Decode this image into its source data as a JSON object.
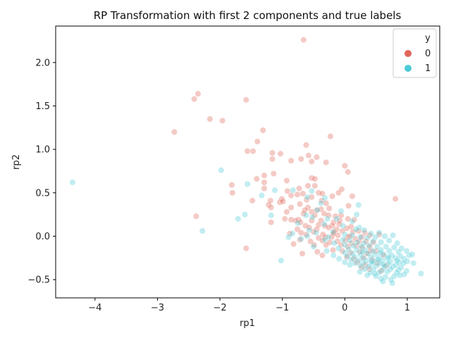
{
  "chart_data": {
    "type": "scatter",
    "title": "RP Transformation with first 2 components and true labels",
    "xlabel": "rp1",
    "ylabel": "rp2",
    "xlim": [
      -4.63,
      1.52
    ],
    "ylim": [
      -0.71,
      2.42
    ],
    "xticks": [
      -4,
      -3,
      -2,
      -1,
      0,
      1
    ],
    "yticks": [
      -0.5,
      0.0,
      0.5,
      1.0,
      1.5,
      2.0
    ],
    "xtick_labels": [
      "−4",
      "−3",
      "−2",
      "−1",
      "0",
      "1"
    ],
    "ytick_labels": [
      "−0.5",
      "0.0",
      "0.5",
      "1.0",
      "1.5",
      "2.0"
    ],
    "grid": false,
    "legend": {
      "title": "y",
      "placement": "top-right",
      "entries": [
        "0",
        "1"
      ]
    },
    "point_opacity": 0.35,
    "series": [
      {
        "name": "0",
        "color": "#e0675a",
        "points": [
          [
            -0.66,
            2.26
          ],
          [
            -2.35,
            1.64
          ],
          [
            -2.41,
            1.58
          ],
          [
            -1.58,
            1.57
          ],
          [
            -2.16,
            1.35
          ],
          [
            -1.96,
            1.33
          ],
          [
            -2.73,
            1.2
          ],
          [
            -1.31,
            1.22
          ],
          [
            -0.23,
            1.15
          ],
          [
            -1.4,
            1.09
          ],
          [
            -0.62,
            1.05
          ],
          [
            -1.56,
            0.98
          ],
          [
            -1.47,
            0.98
          ],
          [
            -1.16,
            0.96
          ],
          [
            -1.03,
            0.95
          ],
          [
            -0.58,
            0.93
          ],
          [
            -0.45,
            0.91
          ],
          [
            -0.7,
            0.89
          ],
          [
            -1.16,
            0.89
          ],
          [
            -0.86,
            0.87
          ],
          [
            -0.53,
            0.86
          ],
          [
            -0.3,
            0.85
          ],
          [
            0.0,
            0.81
          ],
          [
            -1.29,
            0.7
          ],
          [
            -1.14,
            0.72
          ],
          [
            0.05,
            0.74
          ],
          [
            -0.53,
            0.67
          ],
          [
            -0.93,
            0.64
          ],
          [
            -0.48,
            0.66
          ],
          [
            -1.29,
            0.62
          ],
          [
            -1.41,
            0.66
          ],
          [
            -1.81,
            0.59
          ],
          [
            -1.8,
            0.5
          ],
          [
            -0.59,
            0.58
          ],
          [
            -0.48,
            0.58
          ],
          [
            -0.73,
            0.55
          ],
          [
            -0.92,
            0.52
          ],
          [
            -1.29,
            0.55
          ],
          [
            -0.05,
            0.54
          ],
          [
            -0.1,
            0.5
          ],
          [
            -0.67,
            0.49
          ],
          [
            -0.86,
            0.47
          ],
          [
            -0.76,
            0.48
          ],
          [
            -0.42,
            0.5
          ],
          [
            -0.36,
            0.49
          ],
          [
            -0.2,
            0.46
          ],
          [
            -0.53,
            0.45
          ],
          [
            0.12,
            0.46
          ],
          [
            -1.01,
            0.43
          ],
          [
            -1.48,
            0.41
          ],
          [
            -1.19,
            0.41
          ],
          [
            -1.04,
            0.39
          ],
          [
            -0.61,
            0.42
          ],
          [
            -0.37,
            0.41
          ],
          [
            -0.3,
            0.38
          ],
          [
            -0.72,
            0.37
          ],
          [
            -1.22,
            0.36
          ],
          [
            -1.18,
            0.33
          ],
          [
            -0.86,
            0.33
          ],
          [
            -0.59,
            0.33
          ],
          [
            -0.38,
            0.31
          ],
          [
            -0.25,
            0.32
          ],
          [
            0.06,
            0.35
          ],
          [
            0.81,
            0.43
          ],
          [
            -0.64,
            0.3
          ],
          [
            -0.53,
            0.28
          ],
          [
            -0.45,
            0.3
          ],
          [
            -0.33,
            0.26
          ],
          [
            -0.93,
            0.28
          ],
          [
            -2.38,
            0.23
          ],
          [
            -0.15,
            0.23
          ],
          [
            -0.66,
            0.26
          ],
          [
            -0.48,
            0.24
          ],
          [
            -0.26,
            0.24
          ],
          [
            -0.06,
            0.24
          ],
          [
            -0.08,
            0.18
          ],
          [
            -0.96,
            0.2
          ],
          [
            -0.86,
            0.19
          ],
          [
            -0.74,
            0.19
          ],
          [
            -0.71,
            0.16
          ],
          [
            -0.53,
            0.18
          ],
          [
            -0.38,
            0.18
          ],
          [
            -0.18,
            0.16
          ],
          [
            -0.09,
            0.14
          ],
          [
            0.05,
            0.2
          ],
          [
            0.15,
            0.19
          ],
          [
            -1.18,
            0.16
          ],
          [
            -0.79,
            0.18
          ],
          [
            -0.42,
            0.13
          ],
          [
            -0.63,
            0.12
          ],
          [
            -0.32,
            0.12
          ],
          [
            -0.2,
            0.12
          ],
          [
            -0.57,
            0.1
          ],
          [
            -0.45,
            0.08
          ],
          [
            -0.26,
            0.1
          ],
          [
            -0.13,
            0.08
          ],
          [
            0.03,
            0.09
          ],
          [
            0.1,
            0.11
          ],
          [
            -0.76,
            0.08
          ],
          [
            -0.7,
            0.04
          ],
          [
            -0.5,
            0.05
          ],
          [
            -0.35,
            0.02
          ],
          [
            -0.17,
            0.05
          ],
          [
            -0.04,
            0.06
          ],
          [
            0.13,
            0.05
          ],
          [
            0.22,
            0.06
          ],
          [
            0.32,
            0.04
          ],
          [
            -0.88,
            0.03
          ],
          [
            -0.62,
            0.02
          ],
          [
            -0.42,
            -0.02
          ],
          [
            -0.31,
            -0.01
          ],
          [
            -0.21,
            -0.01
          ],
          [
            -0.11,
            0.01
          ],
          [
            0.05,
            -0.01
          ],
          [
            0.17,
            -0.03
          ],
          [
            0.27,
            -0.01
          ],
          [
            0.4,
            0.01
          ],
          [
            0.55,
            0.02
          ],
          [
            -0.72,
            -0.04
          ],
          [
            -0.55,
            -0.06
          ],
          [
            -0.36,
            -0.05
          ],
          [
            -0.24,
            -0.07
          ],
          [
            -0.12,
            -0.06
          ],
          [
            0.01,
            -0.05
          ],
          [
            0.11,
            -0.08
          ],
          [
            0.23,
            -0.06
          ],
          [
            0.34,
            -0.06
          ],
          [
            0.46,
            -0.07
          ],
          [
            -0.82,
            -0.09
          ],
          [
            -0.49,
            -0.1
          ],
          [
            -0.3,
            -0.1
          ],
          [
            -0.06,
            -0.1
          ],
          [
            0.05,
            -0.12
          ],
          [
            0.19,
            -0.11
          ],
          [
            0.28,
            -0.13
          ],
          [
            0.4,
            -0.12
          ],
          [
            -0.68,
            -0.2
          ],
          [
            -0.44,
            -0.18
          ],
          [
            -0.19,
            -0.16
          ],
          [
            -0.04,
            -0.17
          ],
          [
            0.09,
            -0.19
          ],
          [
            0.24,
            -0.18
          ],
          [
            0.35,
            -0.2
          ],
          [
            0.5,
            -0.17
          ],
          [
            -1.58,
            -0.14
          ],
          [
            -0.36,
            -0.22
          ],
          [
            0.03,
            -0.24
          ],
          [
            0.14,
            -0.26
          ],
          [
            0.3,
            -0.25
          ],
          [
            0.44,
            -0.27
          ],
          [
            0.62,
            -0.22
          ],
          [
            0.2,
            -0.3
          ],
          [
            0.33,
            -0.33
          ],
          [
            0.52,
            -0.31
          ],
          [
            0.66,
            -0.34
          ],
          [
            0.39,
            -0.38
          ],
          [
            0.58,
            -0.4
          ],
          [
            0.27,
            -0.36
          ],
          [
            -0.99,
            0.4
          ],
          [
            -0.18,
            0.03
          ],
          [
            0.08,
            0.0
          ],
          [
            0.41,
            -0.17
          ]
        ]
      },
      {
        "name": "1",
        "color": "#4ccbd6",
        "points": [
          [
            -4.36,
            0.62
          ],
          [
            -1.98,
            0.76
          ],
          [
            -1.56,
            0.6
          ],
          [
            -1.12,
            0.53
          ],
          [
            -0.83,
            0.53
          ],
          [
            -0.53,
            0.52
          ],
          [
            -1.33,
            0.47
          ],
          [
            -0.6,
            0.45
          ],
          [
            -0.32,
            0.44
          ],
          [
            -0.38,
            0.38
          ],
          [
            0.22,
            0.36
          ],
          [
            -0.44,
            0.3
          ],
          [
            -0.06,
            0.29
          ],
          [
            -1.6,
            0.25
          ],
          [
            -0.62,
            0.24
          ],
          [
            0.19,
            0.25
          ],
          [
            -1.18,
            0.24
          ],
          [
            -1.71,
            0.2
          ],
          [
            -0.52,
            0.22
          ],
          [
            -0.28,
            0.2
          ],
          [
            -0.13,
            0.2
          ],
          [
            0.12,
            0.17
          ],
          [
            -0.75,
            0.15
          ],
          [
            -0.33,
            0.14
          ],
          [
            -0.03,
            0.12
          ],
          [
            0.23,
            0.1
          ],
          [
            -2.28,
            0.06
          ],
          [
            -0.57,
            0.07
          ],
          [
            -0.19,
            0.05
          ],
          [
            0.18,
            0.08
          ],
          [
            0.31,
            0.07
          ],
          [
            -0.84,
            0.03
          ],
          [
            -0.46,
            0.04
          ],
          [
            0.0,
            0.02
          ],
          [
            0.42,
            0.03
          ],
          [
            0.55,
            0.04
          ],
          [
            -0.9,
            -0.01
          ],
          [
            -0.6,
            0.0
          ],
          [
            -0.26,
            -0.01
          ],
          [
            0.12,
            0.01
          ],
          [
            0.25,
            -0.01
          ],
          [
            0.36,
            -0.02
          ],
          [
            0.49,
            -0.01
          ],
          [
            0.64,
            0.0
          ],
          [
            0.77,
            0.01
          ],
          [
            -0.7,
            -0.03
          ],
          [
            -0.32,
            -0.04
          ],
          [
            -0.03,
            -0.04
          ],
          [
            0.08,
            -0.05
          ],
          [
            0.2,
            -0.07
          ],
          [
            0.31,
            -0.08
          ],
          [
            0.45,
            -0.06
          ],
          [
            0.58,
            -0.07
          ],
          [
            0.71,
            -0.05
          ],
          [
            0.84,
            -0.08
          ],
          [
            -0.17,
            -0.08
          ],
          [
            0.0,
            -0.1
          ],
          [
            0.14,
            -0.11
          ],
          [
            0.27,
            -0.12
          ],
          [
            0.39,
            -0.11
          ],
          [
            0.52,
            -0.12
          ],
          [
            0.66,
            -0.12
          ],
          [
            0.79,
            -0.13
          ],
          [
            0.91,
            -0.14
          ],
          [
            -0.5,
            -0.12
          ],
          [
            -0.1,
            -0.14
          ],
          [
            0.06,
            -0.15
          ],
          [
            0.19,
            -0.16
          ],
          [
            0.33,
            -0.16
          ],
          [
            0.45,
            -0.17
          ],
          [
            0.58,
            -0.16
          ],
          [
            0.71,
            -0.17
          ],
          [
            0.86,
            -0.18
          ],
          [
            0.99,
            -0.17
          ],
          [
            -0.29,
            -0.17
          ],
          [
            0.0,
            -0.19
          ],
          [
            0.12,
            -0.2
          ],
          [
            0.25,
            -0.21
          ],
          [
            0.37,
            -0.2
          ],
          [
            0.49,
            -0.21
          ],
          [
            0.62,
            -0.21
          ],
          [
            0.75,
            -0.22
          ],
          [
            0.89,
            -0.23
          ],
          [
            1.03,
            -0.22
          ],
          [
            1.08,
            -0.21
          ],
          [
            -0.18,
            -0.22
          ],
          [
            0.04,
            -0.23
          ],
          [
            0.16,
            -0.24
          ],
          [
            0.29,
            -0.25
          ],
          [
            0.42,
            -0.24
          ],
          [
            0.55,
            -0.25
          ],
          [
            0.68,
            -0.26
          ],
          [
            0.81,
            -0.25
          ],
          [
            0.95,
            -0.26
          ],
          [
            -0.09,
            -0.26
          ],
          [
            0.1,
            -0.27
          ],
          [
            0.22,
            -0.28
          ],
          [
            0.35,
            -0.28
          ],
          [
            0.47,
            -0.29
          ],
          [
            0.6,
            -0.28
          ],
          [
            0.73,
            -0.29
          ],
          [
            0.87,
            -0.3
          ],
          [
            1.0,
            -0.29
          ],
          [
            -1.02,
            -0.28
          ],
          [
            0.0,
            -0.3
          ],
          [
            0.16,
            -0.31
          ],
          [
            0.3,
            -0.31
          ],
          [
            0.43,
            -0.32
          ],
          [
            0.56,
            -0.31
          ],
          [
            0.69,
            -0.32
          ],
          [
            0.82,
            -0.33
          ],
          [
            1.1,
            -0.31
          ],
          [
            0.08,
            -0.33
          ],
          [
            0.25,
            -0.34
          ],
          [
            0.38,
            -0.35
          ],
          [
            0.51,
            -0.34
          ],
          [
            0.64,
            -0.35
          ],
          [
            0.77,
            -0.35
          ],
          [
            0.9,
            -0.36
          ],
          [
            0.32,
            -0.38
          ],
          [
            0.46,
            -0.38
          ],
          [
            0.6,
            -0.39
          ],
          [
            0.73,
            -0.38
          ],
          [
            0.86,
            -0.39
          ],
          [
            0.99,
            -0.4
          ],
          [
            0.24,
            -0.41
          ],
          [
            0.41,
            -0.42
          ],
          [
            0.55,
            -0.42
          ],
          [
            0.68,
            -0.41
          ],
          [
            0.83,
            -0.42
          ],
          [
            0.95,
            -0.44
          ],
          [
            1.22,
            -0.43
          ],
          [
            0.5,
            -0.46
          ],
          [
            0.65,
            -0.47
          ],
          [
            0.79,
            -0.46
          ],
          [
            0.58,
            -0.49
          ],
          [
            0.74,
            -0.5
          ],
          [
            0.48,
            -0.43
          ],
          [
            0.36,
            -0.45
          ],
          [
            0.61,
            -0.52
          ],
          [
            0.76,
            -0.54
          ],
          [
            0.88,
            -0.45
          ],
          [
            0.43,
            -0.29
          ],
          [
            0.62,
            -0.33
          ],
          [
            0.53,
            -0.27
          ],
          [
            0.7,
            -0.24
          ],
          [
            0.94,
            -0.31
          ],
          [
            0.84,
            -0.28
          ],
          [
            0.28,
            -0.18
          ],
          [
            0.57,
            -0.19
          ]
        ]
      }
    ]
  }
}
